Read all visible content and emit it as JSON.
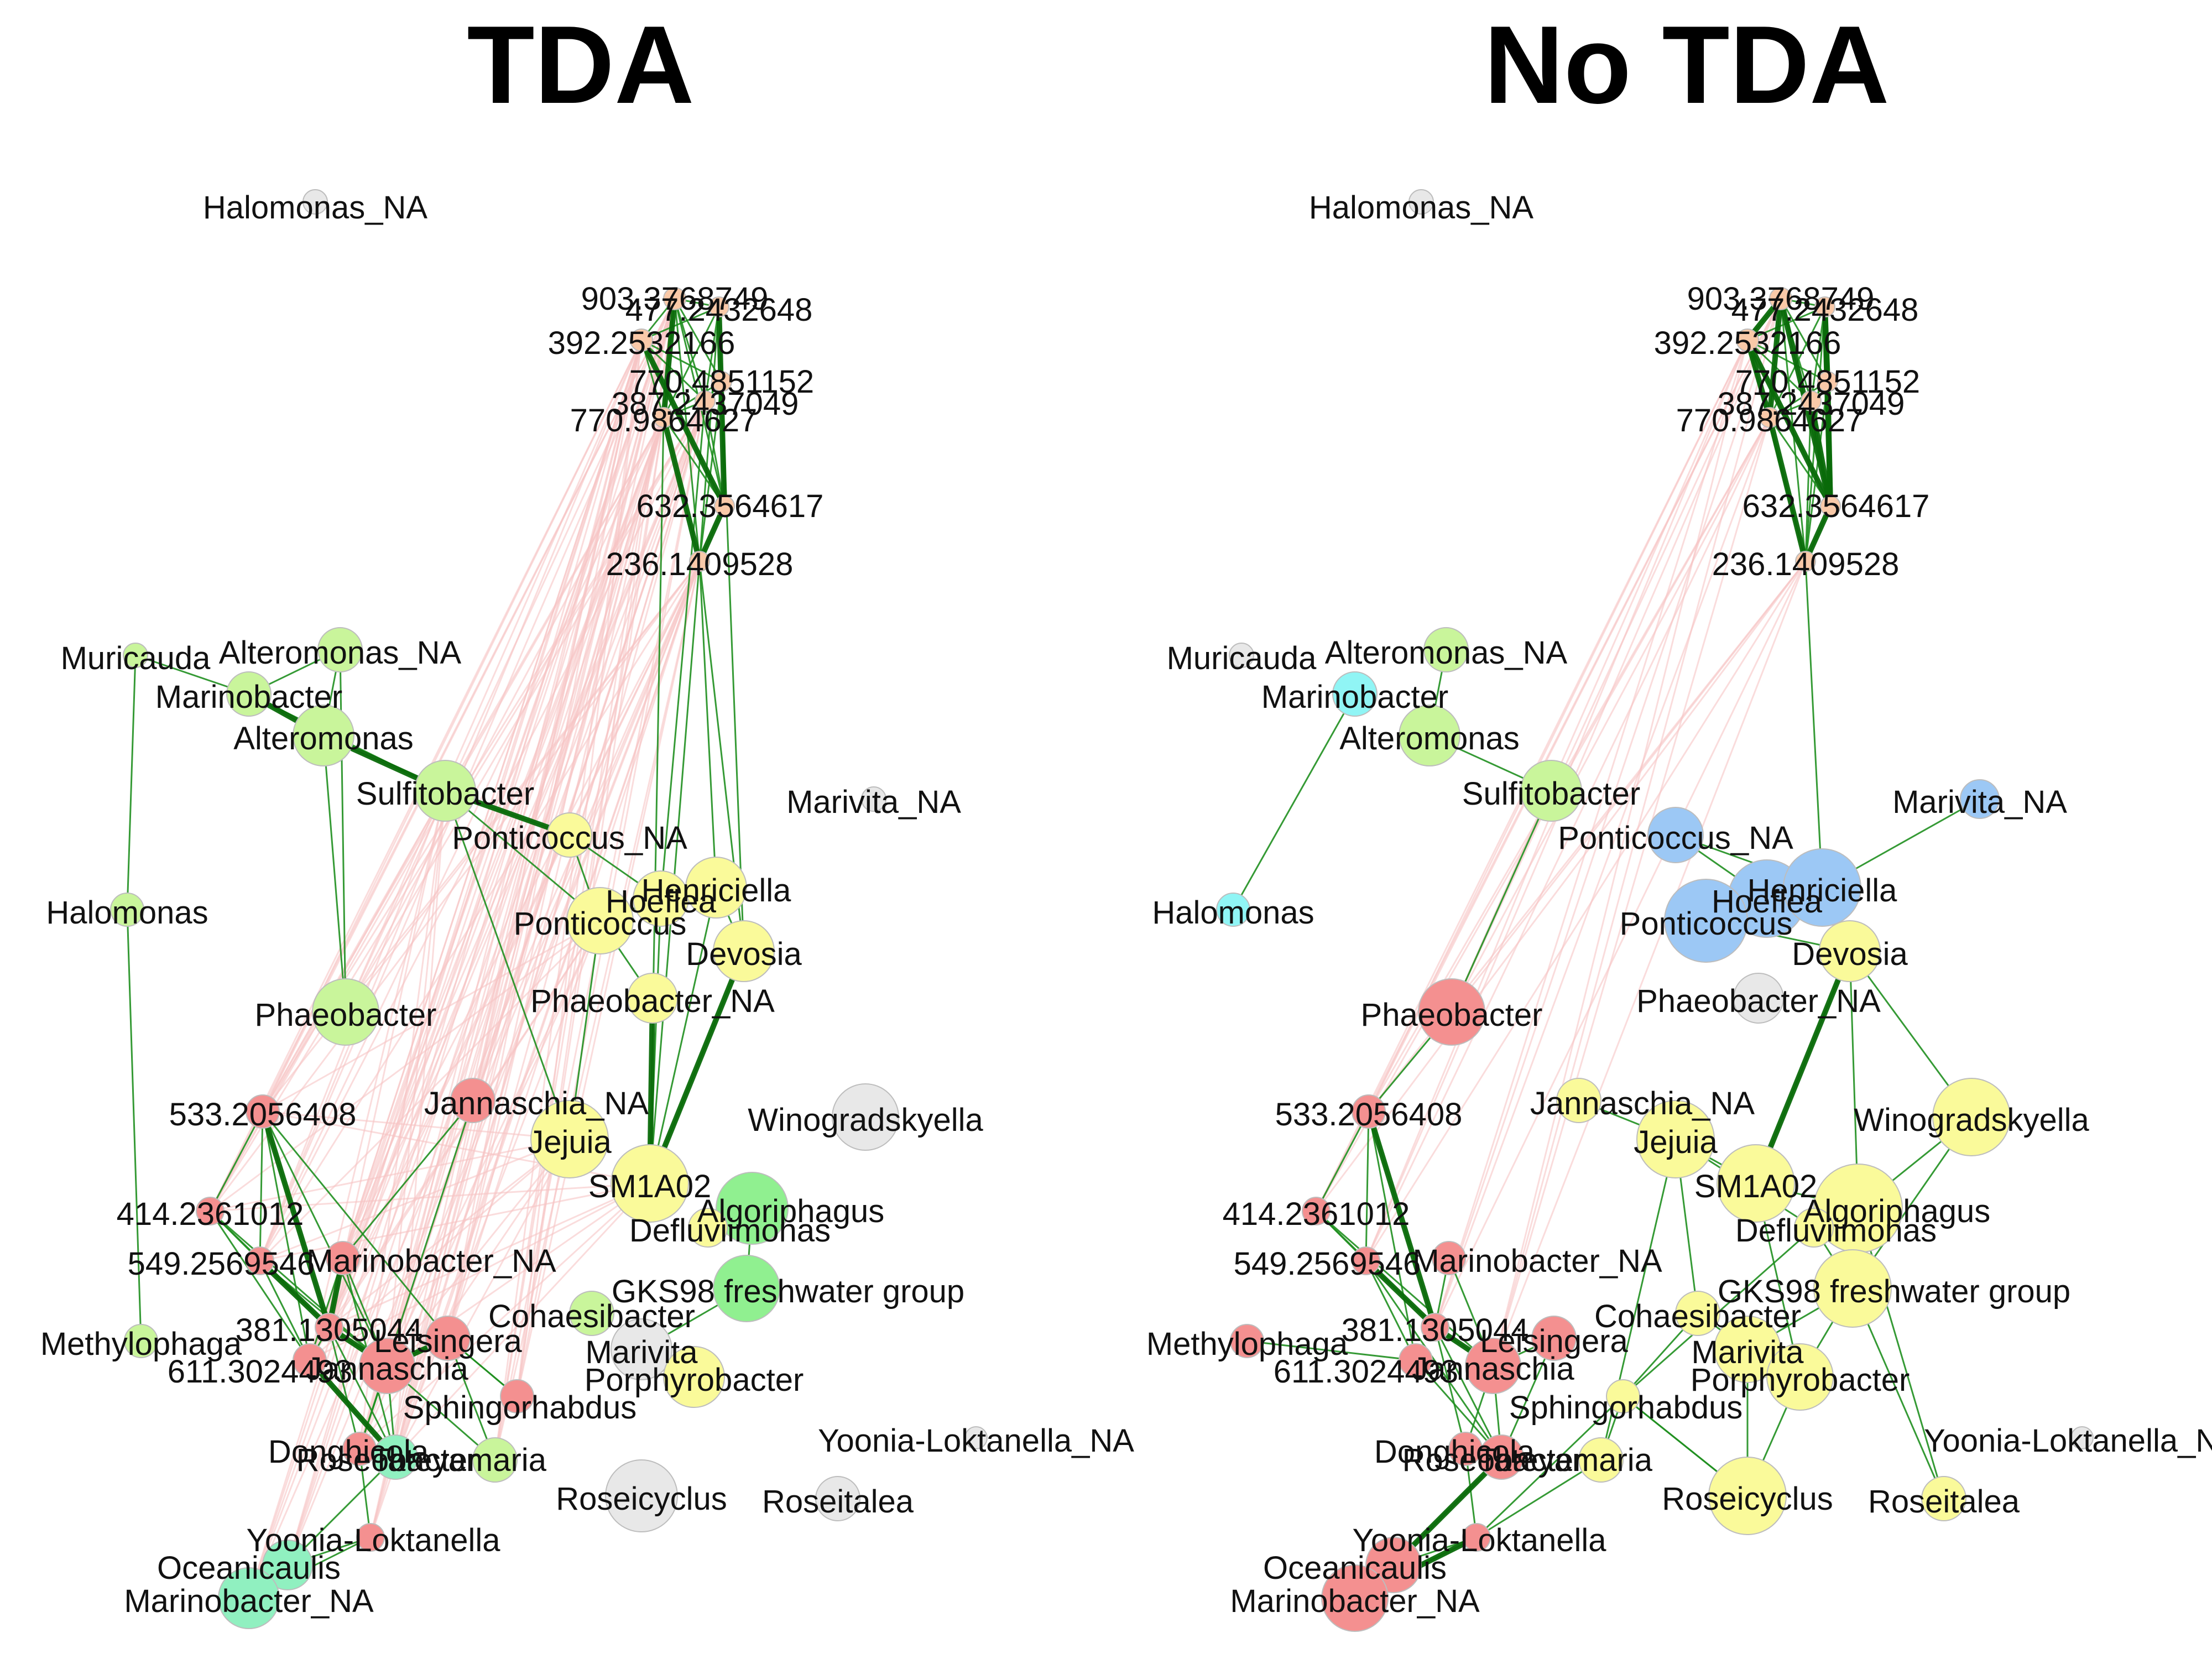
{
  "panels": [
    {
      "title": "TDA",
      "nodes": [
        {
          "label": "Halomonas_NA",
          "color": "#e8e8e8"
        },
        {
          "label": "903.3768749",
          "color": "#f9c9a8"
        },
        {
          "label": "477.2432648",
          "color": "#f9c9a8"
        },
        {
          "label": "392.2532166",
          "color": "#f9c9a8"
        },
        {
          "label": "770.4851152",
          "color": "#f9c9a8"
        },
        {
          "label": "387.2437049",
          "color": "#f9c9a8"
        },
        {
          "label": "770.9864627",
          "color": "#f9c9a8"
        },
        {
          "label": "632.3564617",
          "color": "#f9c9a8"
        },
        {
          "label": "236.1409528",
          "color": "#f9c9a8"
        },
        {
          "label": "Muricauda",
          "color": "#c9f59b"
        },
        {
          "label": "Alteromonas_NA",
          "color": "#c9f59b"
        },
        {
          "label": "Marinobacter",
          "color": "#c9f59b"
        },
        {
          "label": "Alteromonas",
          "color": "#c9f59b"
        },
        {
          "label": "Sulfitobacter",
          "color": "#c9f59b"
        },
        {
          "label": "Marivita_NA",
          "color": "#e8e8e8"
        },
        {
          "label": "Ponticoccus_NA",
          "color": "#fafa9a"
        },
        {
          "label": "Halomonas",
          "color": "#c9f59b"
        },
        {
          "label": "Hoeflea",
          "color": "#fafa9a"
        },
        {
          "label": "Henriciella",
          "color": "#fafa9a"
        },
        {
          "label": "Ponticoccus",
          "color": "#fafa9a"
        },
        {
          "label": "Devosia",
          "color": "#fafa9a"
        },
        {
          "label": "Phaeobacter_NA",
          "color": "#fafa9a"
        },
        {
          "label": "Phaeobacter",
          "color": "#c9f59b"
        },
        {
          "label": "Jannaschia_NA",
          "color": "#f49090"
        },
        {
          "label": "533.2056408",
          "color": "#f49090"
        },
        {
          "label": "Winogradskyella",
          "color": "#e8e8e8"
        },
        {
          "label": "Jejuia",
          "color": "#fafa9a"
        },
        {
          "label": "SM1A02",
          "color": "#fafa9a"
        },
        {
          "label": "414.2361012",
          "color": "#f49090"
        },
        {
          "label": "Algoriphagus",
          "color": "#90f090"
        },
        {
          "label": "Defluviimonas",
          "color": "#fafa9a"
        },
        {
          "label": "549.2569546",
          "color": "#f49090"
        },
        {
          "label": "Marinobacter_NA",
          "color": "#f49090"
        },
        {
          "label": "GKS98 freshwater group",
          "color": "#90f090"
        },
        {
          "label": "Cohaesibacter",
          "color": "#c9f59b"
        },
        {
          "label": "381.1305044",
          "color": "#f49090"
        },
        {
          "label": "Leisingera",
          "color": "#f49090"
        },
        {
          "label": "Methylophaga",
          "color": "#c9f59b"
        },
        {
          "label": "Marivita",
          "color": "#e8e8e8"
        },
        {
          "label": "611.3024493",
          "color": "#f49090"
        },
        {
          "label": "Jannaschia",
          "color": "#f49090"
        },
        {
          "label": "Porphyrobacter",
          "color": "#fafa9a"
        },
        {
          "label": "Sphingorhabdus",
          "color": "#f49090"
        },
        {
          "label": "Yoonia-Loktanella_NA",
          "color": "#e8e8e8"
        },
        {
          "label": "Donghicola",
          "color": "#f49090"
        },
        {
          "label": "Roseobacter",
          "color": "#90f0c0"
        },
        {
          "label": "Tateyamaria",
          "color": "#c9f59b"
        },
        {
          "label": "Roseicyclus",
          "color": "#e8e8e8"
        },
        {
          "label": "Roseitalea",
          "color": "#e8e8e8"
        },
        {
          "label": "Yoonia-Loktanella",
          "color": "#f49090"
        },
        {
          "label": "Oceanicaulis",
          "color": "#90f0c0"
        },
        {
          "label": "Marinobacter_NA",
          "color": "#90f0c0"
        }
      ]
    },
    {
      "title": "No TDA",
      "nodes": [
        {
          "label": "Halomonas_NA",
          "color": "#e8e8e8"
        },
        {
          "label": "903.3768749",
          "color": "#f9c9a8"
        },
        {
          "label": "477.2432648",
          "color": "#f9c9a8"
        },
        {
          "label": "392.2532166",
          "color": "#f9c9a8"
        },
        {
          "label": "770.4851152",
          "color": "#f9c9a8"
        },
        {
          "label": "387.2437049",
          "color": "#f9c9a8"
        },
        {
          "label": "770.9864627",
          "color": "#f9c9a8"
        },
        {
          "label": "632.3564617",
          "color": "#f9c9a8"
        },
        {
          "label": "236.1409528",
          "color": "#f9c9a8"
        },
        {
          "label": "Muricauda",
          "color": "#e8e8e8"
        },
        {
          "label": "Alteromonas_NA",
          "color": "#c9f59b"
        },
        {
          "label": "Marinobacter",
          "color": "#90f5f5"
        },
        {
          "label": "Alteromonas",
          "color": "#c9f59b"
        },
        {
          "label": "Sulfitobacter",
          "color": "#c9f59b"
        },
        {
          "label": "Marivita_NA",
          "color": "#9cc8f5"
        },
        {
          "label": "Ponticoccus_NA",
          "color": "#9cc8f5"
        },
        {
          "label": "Halomonas",
          "color": "#90f5f5"
        },
        {
          "label": "Hoeflea",
          "color": "#9cc8f5"
        },
        {
          "label": "Henriciella",
          "color": "#9cc8f5"
        },
        {
          "label": "Ponticoccus",
          "color": "#9cc8f5"
        },
        {
          "label": "Devosia",
          "color": "#fafa9a"
        },
        {
          "label": "Phaeobacter_NA",
          "color": "#e8e8e8"
        },
        {
          "label": "Phaeobacter",
          "color": "#f49090"
        },
        {
          "label": "Jannaschia_NA",
          "color": "#fafa9a"
        },
        {
          "label": "533.2056408",
          "color": "#f49090"
        },
        {
          "label": "Winogradskyella",
          "color": "#fafa9a"
        },
        {
          "label": "Jejuia",
          "color": "#fafa9a"
        },
        {
          "label": "SM1A02",
          "color": "#fafa9a"
        },
        {
          "label": "414.2361012",
          "color": "#f49090"
        },
        {
          "label": "Algoriphagus",
          "color": "#fafa9a"
        },
        {
          "label": "Defluviimonas",
          "color": "#fafa9a"
        },
        {
          "label": "549.2569546",
          "color": "#f49090"
        },
        {
          "label": "Marinobacter_NA",
          "color": "#f49090"
        },
        {
          "label": "GKS98 freshwater group",
          "color": "#fafa9a"
        },
        {
          "label": "Cohaesibacter",
          "color": "#fafa9a"
        },
        {
          "label": "381.1305044",
          "color": "#f49090"
        },
        {
          "label": "Leisingera",
          "color": "#f49090"
        },
        {
          "label": "Methylophaga",
          "color": "#f49090"
        },
        {
          "label": "Marivita",
          "color": "#fafa9a"
        },
        {
          "label": "611.3024493",
          "color": "#f49090"
        },
        {
          "label": "Jannaschia",
          "color": "#f49090"
        },
        {
          "label": "Porphyrobacter",
          "color": "#fafa9a"
        },
        {
          "label": "Sphingorhabdus",
          "color": "#fafa9a"
        },
        {
          "label": "Yoonia-Loktanella_NA",
          "color": "#e8e8e8"
        },
        {
          "label": "Donghicola",
          "color": "#f49090"
        },
        {
          "label": "Roseobacter",
          "color": "#f49090"
        },
        {
          "label": "Tateyamaria",
          "color": "#fafa9a"
        },
        {
          "label": "Roseicyclus",
          "color": "#fafa9a"
        },
        {
          "label": "Roseitalea",
          "color": "#fafa9a"
        },
        {
          "label": "Yoonia-Loktanella",
          "color": "#f49090"
        },
        {
          "label": "Oceanicaulis",
          "color": "#f49090"
        },
        {
          "label": "Marinobacter_NA",
          "color": "#f49090"
        }
      ]
    }
  ],
  "edge_colors": {
    "positive": "#1f8f1f",
    "strong": "#0a6a0a",
    "negative": "#f7c4c4"
  }
}
